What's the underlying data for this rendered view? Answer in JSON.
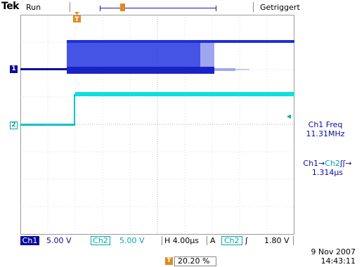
{
  "header": {
    "logo": "Tek",
    "run_status": "Run",
    "trigger_state": "Getriggert"
  },
  "markers": {
    "ch1": "1",
    "ch2": "2",
    "trigger": "T"
  },
  "measurements": {
    "m1_label": "Ch1 Freq",
    "m1_value": "11.31MHz",
    "m2_src": "Ch1",
    "m2_arrow": "→",
    "m2_dst": "Ch2",
    "m2_edges": "ʃʃ→",
    "m2_value": "1.314µs"
  },
  "bottom": {
    "ch1_label": "Ch1",
    "ch1_scale": "5.00 V",
    "ch2_label": "Ch2",
    "ch2_scale": "5.00 V",
    "horizontal": "H 4.00µs",
    "trigger_mode": "A",
    "trigger_source": "Ch2",
    "trigger_slope": "ʃ",
    "trigger_level": "1.80 V",
    "trigger_position": "20.20 %",
    "date": "9 Nov 2007",
    "time": "14:43:11"
  },
  "colors": {
    "ch1": "#0a0a9c",
    "ch2": "#06a7a7",
    "trigger": "#e08a1e"
  }
}
